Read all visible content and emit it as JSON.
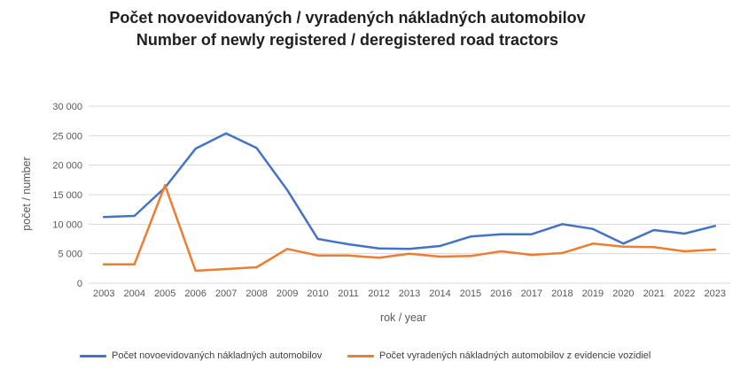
{
  "title_line1": "Počet novoevidovaných / vyradených nákladných automobilov",
  "title_line2": "Number of newly registered / deregistered road tractors",
  "chart_data": {
    "type": "line",
    "title": "Počet novoevidovaných / vyradených nákladných automobilov / Number of newly registered / deregistered road tractors",
    "xlabel": "rok / year",
    "ylabel": "počet / number",
    "ylim": [
      0,
      30000
    ],
    "yticks": [
      0,
      5000,
      10000,
      15000,
      20000,
      25000,
      30000
    ],
    "ytick_labels": [
      "0",
      "5 000",
      "10 000",
      "15 000",
      "20 000",
      "25 000",
      "30 000"
    ],
    "grid": true,
    "legend_position": "bottom",
    "categories": [
      "2003",
      "2004",
      "2005",
      "2006",
      "2007",
      "2008",
      "2009",
      "2010",
      "2011",
      "2012",
      "2013",
      "2014",
      "2015",
      "2016",
      "2017",
      "2018",
      "2019",
      "2020",
      "2021",
      "2022",
      "2023"
    ],
    "series": [
      {
        "name": "Počet novoevidovaných nákladných automobilov",
        "color": "#4472c4",
        "values": [
          11200,
          11400,
          16200,
          22800,
          25400,
          22900,
          15800,
          7500,
          6600,
          5900,
          5800,
          6300,
          7900,
          8300,
          8300,
          10000,
          9200,
          6700,
          9000,
          8400,
          9700
        ]
      },
      {
        "name": "Počet vyradených nákladných automobilov z evidencie vozidiel",
        "color": "#ed7d31",
        "values": [
          3200,
          3200,
          16600,
          2100,
          2400,
          2700,
          5800,
          4700,
          4700,
          4300,
          5000,
          4500,
          4600,
          5400,
          4800,
          5100,
          6700,
          6200,
          6100,
          5400,
          5700
        ]
      }
    ]
  }
}
